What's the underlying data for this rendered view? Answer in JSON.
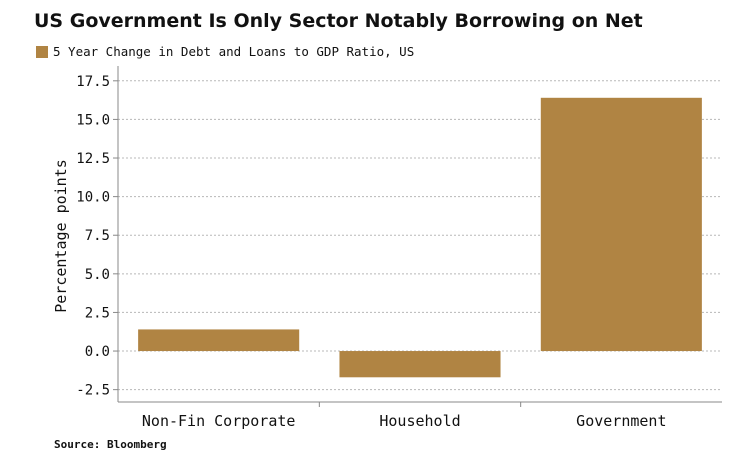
{
  "colors": {
    "bar": "#b08443",
    "grid": "#b8b8b8",
    "axis": "#888888"
  },
  "chart_data": {
    "type": "bar",
    "title": "US Government Is Only Sector Notably Borrowing on Net",
    "legend": "5 Year Change in Debt and Loans to GDP Ratio, US",
    "ylabel": "Percentage points",
    "xlabel": "",
    "categories": [
      "Non-Fin Corporate",
      "Household",
      "Government"
    ],
    "values": [
      1.4,
      -1.7,
      16.4
    ],
    "ylim": [
      -3.3,
      18.2
    ],
    "yticks": [
      -2.5,
      0,
      2.5,
      5,
      7.5,
      10,
      12.5,
      15,
      17.5
    ],
    "ytick_labels": [
      "-2.5",
      "0.0",
      "2.5",
      "5.0",
      "7.5",
      "10.0",
      "12.5",
      "15.0",
      "17.5"
    ],
    "grid": true,
    "legend_position": "top-left",
    "source": "Source: Bloomberg"
  }
}
